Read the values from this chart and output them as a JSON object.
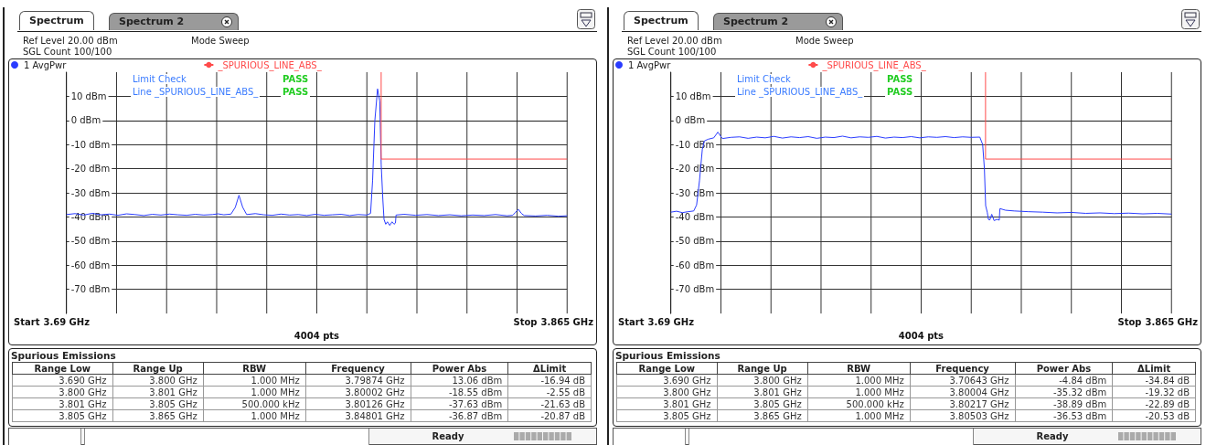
{
  "chart_data": [
    {
      "type": "line",
      "legend": "top left",
      "marker": "none",
      "grid": true,
      "series": [
        {
          "name": "1 AvgPwr",
          "color": "#2a3cff",
          "x": [
            3.69,
            3.693,
            3.696,
            3.699,
            3.702,
            3.705,
            3.708,
            3.711,
            3.714,
            3.717,
            3.72,
            3.723,
            3.726,
            3.729,
            3.732,
            3.735,
            3.738,
            3.741,
            3.743,
            3.745,
            3.7475,
            3.749,
            3.7503,
            3.7516,
            3.753,
            3.756,
            3.759,
            3.762,
            3.765,
            3.768,
            3.771,
            3.774,
            3.777,
            3.78,
            3.783,
            3.786,
            3.789,
            3.792,
            3.795,
            3.7963,
            3.797,
            3.7978,
            3.79874,
            3.7995,
            3.80002,
            3.8006,
            3.801,
            3.8016,
            3.8022,
            3.803,
            3.8038,
            3.8045,
            3.805,
            3.8052,
            3.808,
            3.812,
            3.816,
            3.82,
            3.824,
            3.828,
            3.832,
            3.836,
            3.84,
            3.844,
            3.846,
            3.847,
            3.84801,
            3.849,
            3.85,
            3.854,
            3.858,
            3.862,
            3.865
          ],
          "values": [
            -39.0,
            -38.6,
            -39.2,
            -38.5,
            -39.1,
            -38.8,
            -39.3,
            -38.7,
            -39.0,
            -39.4,
            -38.9,
            -39.2,
            -38.8,
            -39.1,
            -39.3,
            -38.9,
            -39.2,
            -39.0,
            -38.7,
            -39.1,
            -38.8,
            -36,
            -31,
            -36,
            -39.0,
            -38.6,
            -39.1,
            -39.3,
            -38.8,
            -39.2,
            -39.0,
            -39.4,
            -38.9,
            -39.3,
            -39.1,
            -38.9,
            -39.4,
            -39.0,
            -39.2,
            -38.5,
            -25,
            0,
            13.06,
            8,
            -18.55,
            -33,
            -41,
            -43,
            -42,
            -43.5,
            -42,
            -43,
            -42.5,
            -39.2,
            -38.9,
            -39.3,
            -39.0,
            -39.4,
            -39.1,
            -39.5,
            -39.2,
            -39.4,
            -39.0,
            -39.5,
            -39.3,
            -38,
            -36.87,
            -38.5,
            -39.4,
            -39.6,
            -39.3,
            -39.7,
            -39.5
          ]
        },
        {
          "name": "_SPURIOUS_LINE_ABS_",
          "color": "#ff4b4b",
          "x": [
            3.8,
            3.8,
            3.865
          ],
          "values": [
            20,
            -16,
            -16
          ]
        }
      ],
      "xlim": [
        3.69,
        3.865
      ],
      "xticks": [
        {
          "value": 3.69,
          "label": "3.69 GHz"
        },
        {
          "value": 3.7075,
          "label": null
        },
        {
          "value": 3.725,
          "label": null
        },
        {
          "value": 3.7425,
          "label": null
        },
        {
          "value": 3.76,
          "label": null
        },
        {
          "value": 3.7775,
          "label": null
        },
        {
          "value": 3.795,
          "label": null
        },
        {
          "value": 3.8125,
          "label": null
        },
        {
          "value": 3.83,
          "label": null
        },
        {
          "value": 3.8475,
          "label": null
        },
        {
          "value": 3.865,
          "label": "3.865 GHz"
        }
      ],
      "ylim": [
        -80,
        20
      ],
      "yticks": [
        {
          "value": 10,
          "label": "10 dBm"
        },
        {
          "value": 0,
          "label": "0 dBm"
        },
        {
          "value": -10,
          "label": "-10 dBm"
        },
        {
          "value": -20,
          "label": "-20 dBm"
        },
        {
          "value": -30,
          "label": "-30 dBm"
        },
        {
          "value": -40,
          "label": "-40 dBm"
        },
        {
          "value": -50,
          "label": "-50 dBm"
        },
        {
          "value": -60,
          "label": "-60 dBm"
        },
        {
          "value": -70,
          "label": "-70 dBm"
        }
      ],
      "xlabel": "4004 pts",
      "annotations": [
        "Spectrum",
        "Spectrum 2",
        "Ref Level 20.00 dBm",
        "Mode Sweep",
        "SGL Count 100/100",
        "Limit Check",
        "PASS",
        "Line _SPURIOUS_LINE_ABS_",
        "PASS",
        "Start",
        "Stop"
      ]
    },
    {
      "type": "other",
      "title": "Spurious Emissions",
      "annotations": [
        "Range Low",
        "Range Up",
        "RBW",
        "Frequency",
        "Power Abs",
        "ΔLimit",
        "3.690 GHz",
        "3.800 GHz",
        "1.000 MHz",
        "3.79874 GHz",
        "13.06 dBm",
        "-16.94 dB",
        "3.800 GHz",
        "3.801 GHz",
        "1.000 MHz",
        "3.80002 GHz",
        "-18.55 dBm",
        "-2.55 dB",
        "3.801 GHz",
        "3.805 GHz",
        "500.000 kHz",
        "3.80126 GHz",
        "-37.63 dBm",
        "-21.63 dB",
        "3.805 GHz",
        "3.865 GHz",
        "1.000 MHz",
        "3.84801 GHz",
        "-36.87 dBm",
        "-20.87 dB",
        "Ready"
      ]
    },
    {
      "type": "line",
      "legend": "top left",
      "marker": "none",
      "grid": true,
      "series": [
        {
          "name": "1 AvgPwr",
          "color": "#2a3cff",
          "x": [
            3.69,
            3.692,
            3.694,
            3.696,
            3.698,
            3.699,
            3.7,
            3.701,
            3.7017,
            3.703,
            3.705,
            3.70643,
            3.708,
            3.711,
            3.714,
            3.717,
            3.72,
            3.723,
            3.726,
            3.729,
            3.732,
            3.735,
            3.738,
            3.741,
            3.744,
            3.747,
            3.75,
            3.753,
            3.756,
            3.759,
            3.762,
            3.765,
            3.768,
            3.771,
            3.774,
            3.777,
            3.78,
            3.783,
            3.786,
            3.789,
            3.792,
            3.795,
            3.798,
            3.799,
            3.7996,
            3.80004,
            3.8006,
            3.801,
            3.8015,
            3.80217,
            3.803,
            3.804,
            3.8048,
            3.80503,
            3.807,
            3.81,
            3.815,
            3.82,
            3.825,
            3.83,
            3.835,
            3.84,
            3.845,
            3.85,
            3.855,
            3.86,
            3.865
          ],
          "values": [
            -38,
            -37.6,
            -38.2,
            -37.8,
            -37.5,
            -35,
            -25,
            -12,
            -8.5,
            -7.8,
            -7.2,
            -4.84,
            -7.5,
            -7.0,
            -6.8,
            -7.4,
            -6.9,
            -7.2,
            -6.6,
            -7.3,
            -6.8,
            -7.1,
            -6.7,
            -7.4,
            -6.9,
            -7.1,
            -6.5,
            -7.2,
            -6.8,
            -7.0,
            -6.6,
            -7.3,
            -6.9,
            -7.1,
            -6.7,
            -7.2,
            -6.8,
            -7.0,
            -6.7,
            -7.1,
            -6.8,
            -7.0,
            -6.9,
            -10,
            -20,
            -35.32,
            -38,
            -41,
            -41.2,
            -38.89,
            -41.5,
            -41,
            -41.3,
            -36.53,
            -37.2,
            -37.5,
            -37.8,
            -38.0,
            -38.3,
            -38.1,
            -38.5,
            -38.3,
            -38.6,
            -38.4,
            -38.7,
            -38.5,
            -38.8
          ]
        },
        {
          "name": "_SPURIOUS_LINE_ABS_",
          "color": "#ff4b4b",
          "x": [
            3.8,
            3.8,
            3.865
          ],
          "values": [
            20,
            -16,
            -16
          ]
        }
      ],
      "xlim": [
        3.69,
        3.865
      ],
      "xticks": [
        {
          "value": 3.69,
          "label": "3.69 GHz"
        },
        {
          "value": 3.7075,
          "label": null
        },
        {
          "value": 3.725,
          "label": null
        },
        {
          "value": 3.7425,
          "label": null
        },
        {
          "value": 3.76,
          "label": null
        },
        {
          "value": 3.7775,
          "label": null
        },
        {
          "value": 3.795,
          "label": null
        },
        {
          "value": 3.8125,
          "label": null
        },
        {
          "value": 3.83,
          "label": null
        },
        {
          "value": 3.8475,
          "label": null
        },
        {
          "value": 3.865,
          "label": "3.865 GHz"
        }
      ],
      "ylim": [
        -80,
        20
      ],
      "yticks": [
        {
          "value": 10,
          "label": "10 dBm"
        },
        {
          "value": 0,
          "label": "0 dBm"
        },
        {
          "value": -10,
          "label": "-10 dBm"
        },
        {
          "value": -20,
          "label": "-20 dBm"
        },
        {
          "value": -30,
          "label": "-30 dBm"
        },
        {
          "value": -40,
          "label": "-40 dBm"
        },
        {
          "value": -50,
          "label": "-50 dBm"
        },
        {
          "value": -60,
          "label": "-60 dBm"
        },
        {
          "value": -70,
          "label": "-70 dBm"
        }
      ],
      "xlabel": "4004 pts",
      "annotations": [
        "Spectrum",
        "Spectrum 2",
        "Ref Level 20.00 dBm",
        "Mode Sweep",
        "SGL Count 100/100",
        "Limit Check",
        "PASS",
        "Line _SPURIOUS_LINE_ABS_",
        "PASS",
        "Start",
        "Stop"
      ]
    },
    {
      "type": "other",
      "title": "Spurious Emissions",
      "annotations": [
        "Range Low",
        "Range Up",
        "RBW",
        "Frequency",
        "Power Abs",
        "ΔLimit",
        "3.690 GHz",
        "3.800 GHz",
        "1.000 MHz",
        "3.70643 GHz",
        "-4.84 dBm",
        "-34.84 dB",
        "3.800 GHz",
        "3.801 GHz",
        "1.000 MHz",
        "3.80004 GHz",
        "-35.32 dBm",
        "-19.32 dB",
        "3.801 GHz",
        "3.805 GHz",
        "500.000 kHz",
        "3.80217 GHz",
        "-38.89 dBm",
        "-22.89 dB",
        "3.805 GHz",
        "3.865 GHz",
        "1.000 MHz",
        "3.80503 GHz",
        "-36.53 dBm",
        "-20.53 dB",
        "Ready"
      ]
    }
  ]
}
